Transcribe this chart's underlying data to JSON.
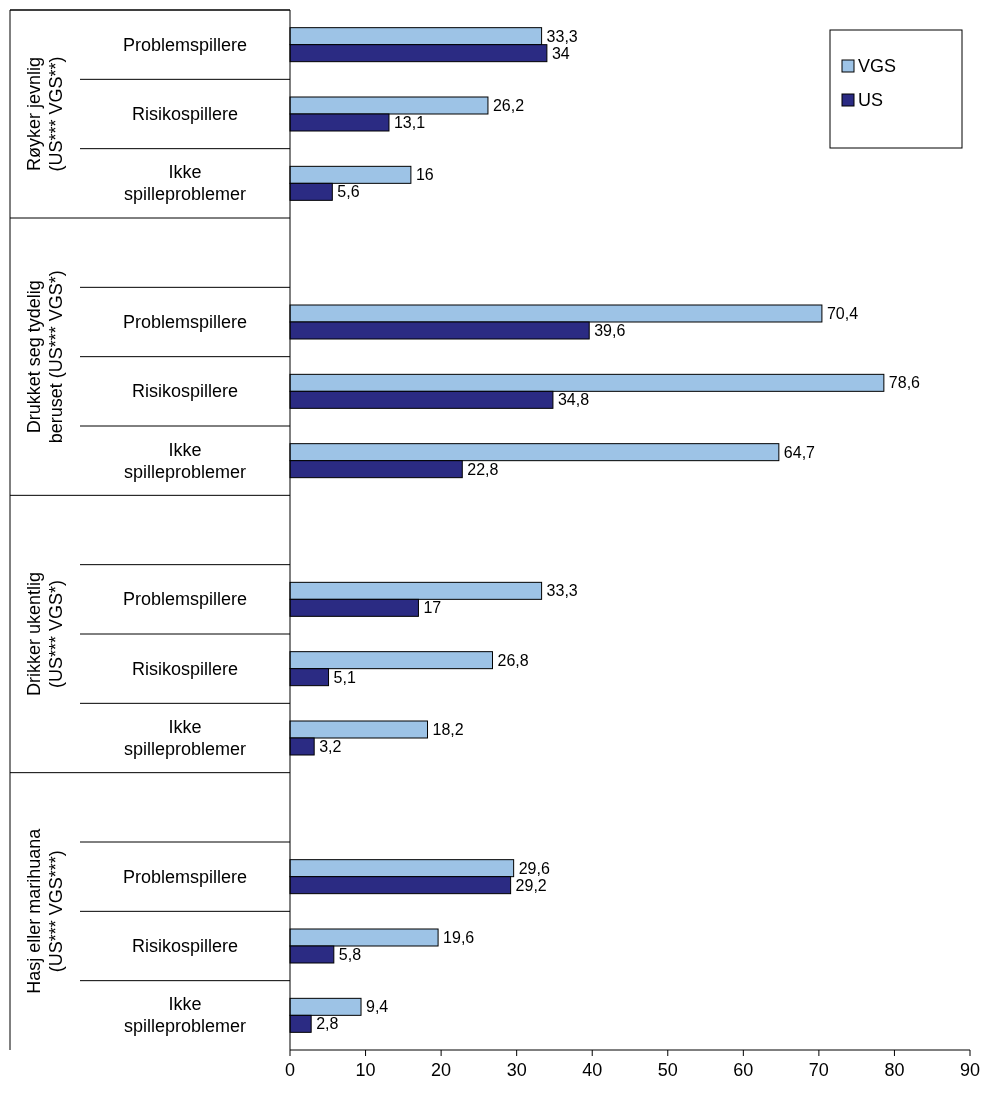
{
  "chart_data": {
    "type": "bar",
    "orientation": "horizontal",
    "categories": [
      "Problemspillere",
      "Risikospillere",
      "Ikke spilleproblemer",
      null,
      "Problemspillere",
      "Risikospillere",
      "Ikke spilleproblemer",
      null,
      "Problemspillere",
      "Risikospillere",
      "Ikke spilleproblemer",
      null,
      "Problemspillere",
      "Risikospillere",
      "Ikke spilleproblemer"
    ],
    "series": [
      {
        "name": "VGS",
        "color": "#9dc3e6",
        "values": [
          33.3,
          26.2,
          16,
          null,
          70.4,
          78.6,
          64.7,
          null,
          33.3,
          26.8,
          18.2,
          null,
          29.6,
          19.6,
          9.4
        ],
        "value_labels": [
          "33,3",
          "26,2",
          "16",
          null,
          "70,4",
          "78,6",
          "64,7",
          null,
          "33,3",
          "26,8",
          "18,2",
          null,
          "29,6",
          "19,6",
          "9,4"
        ]
      },
      {
        "name": "US",
        "color": "#2b2b83",
        "values": [
          34,
          13.1,
          5.6,
          null,
          39.6,
          34.8,
          22.8,
          null,
          17,
          5.1,
          3.2,
          null,
          29.2,
          5.8,
          2.8
        ],
        "value_labels": [
          "34",
          "13,1",
          "5,6",
          null,
          "39,6",
          "34,8",
          "22,8",
          null,
          "17",
          "5,1",
          "3,2",
          null,
          "29,2",
          "5,8",
          "2,8"
        ]
      }
    ],
    "annotations": [
      "Røyker jevnlig (US*** VGS**)",
      "Drukket seg tydelig beruset (US*** VGS*)",
      "Drikker ukentlig (US*** VGS*)",
      "Hasj eller marihuana (US*** VGS***)"
    ],
    "xlim": [
      0,
      90
    ],
    "xticks": [
      0,
      10,
      20,
      30,
      40,
      50,
      60,
      70,
      80,
      90
    ],
    "legend": "top right",
    "grid": false
  }
}
